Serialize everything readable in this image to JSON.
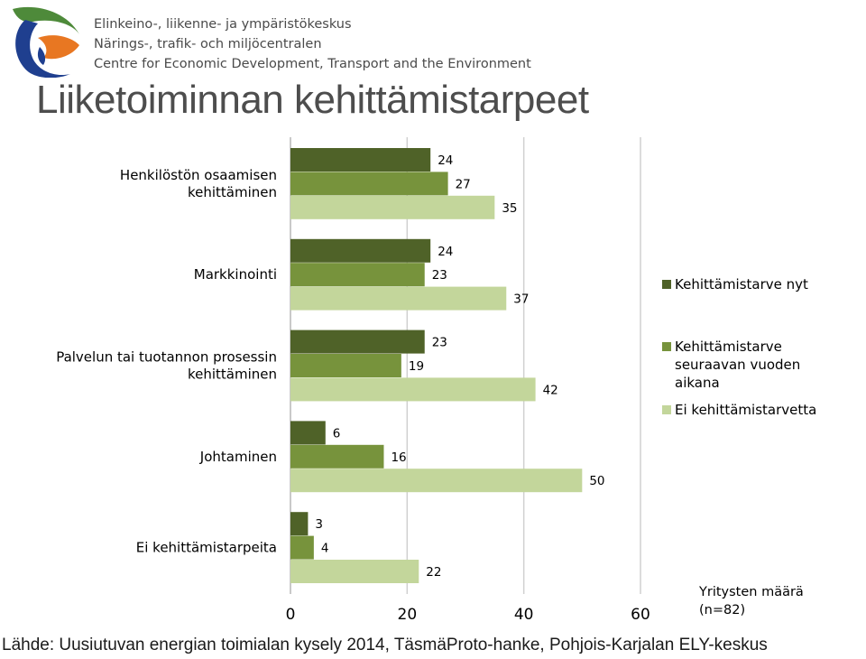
{
  "header": {
    "org_lines": [
      "Elinkeino-, liikenne- ja ympäristökeskus",
      "Närings-, trafik- och miljöcentralen",
      "Centre for Economic Development, Transport and the Environment"
    ]
  },
  "title": "Liiketoiminnan kehittämistarpeet",
  "source": "Lähde: Uusiutuvan energian toimialan kysely 2014, TäsmäProto-hanke, Pohjois-Karjalan ELY-keskus",
  "colors": {
    "logo_green": "#4e8a3a",
    "logo_orange": "#e87722",
    "logo_blue": "#1f3f8f",
    "grid": "#d0d0d0"
  },
  "chart_data": {
    "type": "bar",
    "orientation": "horizontal",
    "categories": [
      [
        "Henkilöstön osaamisen",
        "kehittäminen"
      ],
      [
        "Markkinointi"
      ],
      [
        "Palvelun tai tuotannon prosessin",
        "kehittäminen"
      ],
      [
        "Johtaminen"
      ],
      [
        "Ei kehittämistarpeita"
      ]
    ],
    "series": [
      {
        "name": "Kehittämistarve nyt",
        "legend_lines": [
          "Kehittämistarve nyt"
        ],
        "color": "#4f6228",
        "values": [
          24,
          24,
          23,
          6,
          3
        ]
      },
      {
        "name": "Kehittämistarve seuraavan vuoden aikana",
        "legend_lines": [
          "Kehittämistarve",
          "seuraavan vuoden",
          "aikana"
        ],
        "color": "#77933c",
        "values": [
          27,
          23,
          19,
          16,
          4
        ]
      },
      {
        "name": "Ei kehittämistarvetta",
        "legend_lines": [
          "Ei kehittämistarvetta"
        ],
        "color": "#c3d69b",
        "values": [
          35,
          37,
          42,
          50,
          22
        ]
      }
    ],
    "xlim": [
      0,
      60
    ],
    "xticks": [
      "0",
      "20",
      "40",
      "60"
    ],
    "grid": true,
    "legend_position": "right",
    "note_lines": [
      "Yritysten määrä",
      "(n=82)"
    ]
  }
}
